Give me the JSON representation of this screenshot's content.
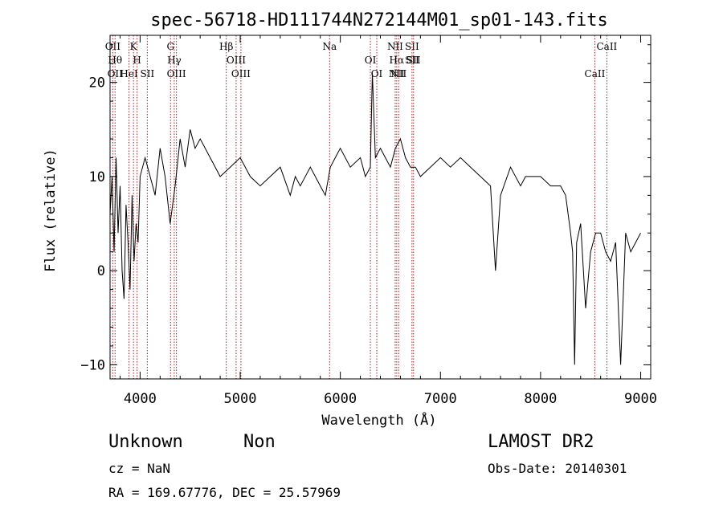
{
  "chart_data": {
    "type": "line",
    "title": "spec-56718-HD111744N272144M01_sp01-143.fits",
    "xlabel": "Wavelength (Å)",
    "ylabel": "Flux (relative)",
    "xlim": [
      3700,
      9100
    ],
    "ylim": [
      -11.5,
      25
    ],
    "xticks": [
      4000,
      5000,
      6000,
      7000,
      8000,
      9000
    ],
    "yticks": [
      -10,
      0,
      10,
      20
    ],
    "grid": false,
    "series": [
      {
        "x": [
          3700,
          3720,
          3740,
          3760,
          3780,
          3800,
          3820,
          3840,
          3860,
          3880,
          3900,
          3920,
          3940,
          3960,
          3980,
          4000,
          4050,
          4100,
          4150,
          4200,
          4250,
          4300,
          4350,
          4400,
          4450,
          4500,
          4550,
          4600,
          4700,
          4800,
          4900,
          5000,
          5100,
          5200,
          5300,
          5400,
          5500,
          5550,
          5600,
          5700,
          5800,
          5850,
          5900,
          5950,
          6000,
          6100,
          6200,
          6250,
          6300,
          6320,
          6350,
          6400,
          6450,
          6500,
          6550,
          6600,
          6650,
          6700,
          6750,
          6800,
          6900,
          7000,
          7100,
          7200,
          7300,
          7400,
          7500,
          7550,
          7600,
          7700,
          7800,
          7850,
          7900,
          8000,
          8100,
          8200,
          8250,
          8300,
          8320,
          8340,
          8360,
          8400,
          8450,
          8500,
          8550,
          8600,
          8650,
          8700,
          8750,
          8800,
          8850,
          8900,
          8950,
          9000
        ],
        "y": [
          6,
          10,
          2,
          12,
          4,
          9,
          0,
          -3,
          7,
          3,
          -2,
          8,
          1,
          5,
          3,
          10,
          12,
          10,
          8,
          13,
          10,
          5,
          9,
          14,
          11,
          15,
          13,
          14,
          12,
          10,
          11,
          12,
          10,
          9,
          10,
          11,
          8,
          10,
          9,
          11,
          9,
          8,
          11,
          12,
          13,
          11,
          12,
          10,
          11,
          21,
          12,
          13,
          12,
          11,
          13,
          14,
          12,
          11,
          11,
          10,
          11,
          12,
          11,
          12,
          11,
          10,
          9,
          0,
          8,
          11,
          9,
          10,
          10,
          10,
          9,
          9,
          8,
          4,
          2,
          -10,
          3,
          5,
          -4,
          2,
          4,
          4,
          2,
          1,
          3,
          -10,
          4,
          2,
          3,
          4
        ]
      }
    ],
    "line_marks": [
      {
        "x": 3727,
        "labels": [
          "OII"
        ]
      },
      {
        "x": 3750,
        "labels": [
          "Hθ",
          "OII"
        ]
      },
      {
        "x": 3889,
        "labels": [
          "HeI"
        ]
      },
      {
        "x": 3934,
        "labels": [
          "K"
        ]
      },
      {
        "x": 3970,
        "labels": [
          "H"
        ]
      },
      {
        "x": 4072,
        "labels": [
          "SII"
        ]
      },
      {
        "x": 4304,
        "labels": [
          "G"
        ]
      },
      {
        "x": 4341,
        "labels": [
          "Hγ"
        ]
      },
      {
        "x": 4363,
        "labels": [
          "OIII"
        ]
      },
      {
        "x": 4861,
        "labels": [
          "Hβ"
        ]
      },
      {
        "x": 4959,
        "labels": [
          "OIII"
        ]
      },
      {
        "x": 5007,
        "labels": [
          "OIII"
        ]
      },
      {
        "x": 5893,
        "labels": [
          "Na"
        ]
      },
      {
        "x": 6300,
        "labels": [
          "OI"
        ]
      },
      {
        "x": 6364,
        "labels": [
          "OI"
        ]
      },
      {
        "x": 6548,
        "labels": [
          "NII"
        ]
      },
      {
        "x": 6563,
        "labels": [
          "Hα",
          "NII"
        ]
      },
      {
        "x": 6583,
        "labels": [
          "NII"
        ]
      },
      {
        "x": 6716,
        "labels": [
          "SII",
          "SII"
        ]
      },
      {
        "x": 6731,
        "labels": [
          "SII"
        ]
      },
      {
        "x": 8542,
        "labels": [
          "CaII"
        ]
      },
      {
        "x": 8662,
        "labels": [
          "CaII"
        ]
      }
    ]
  },
  "info": {
    "class": "Unknown",
    "subclass": "Non",
    "survey": "LAMOST DR2",
    "cz": "cz = NaN",
    "obs_date": "Obs-Date: 20140301",
    "coords": "RA = 169.67776, DEC =  25.57969"
  },
  "colors": {
    "line_marker": "#a0202a",
    "axis": "#000000"
  }
}
